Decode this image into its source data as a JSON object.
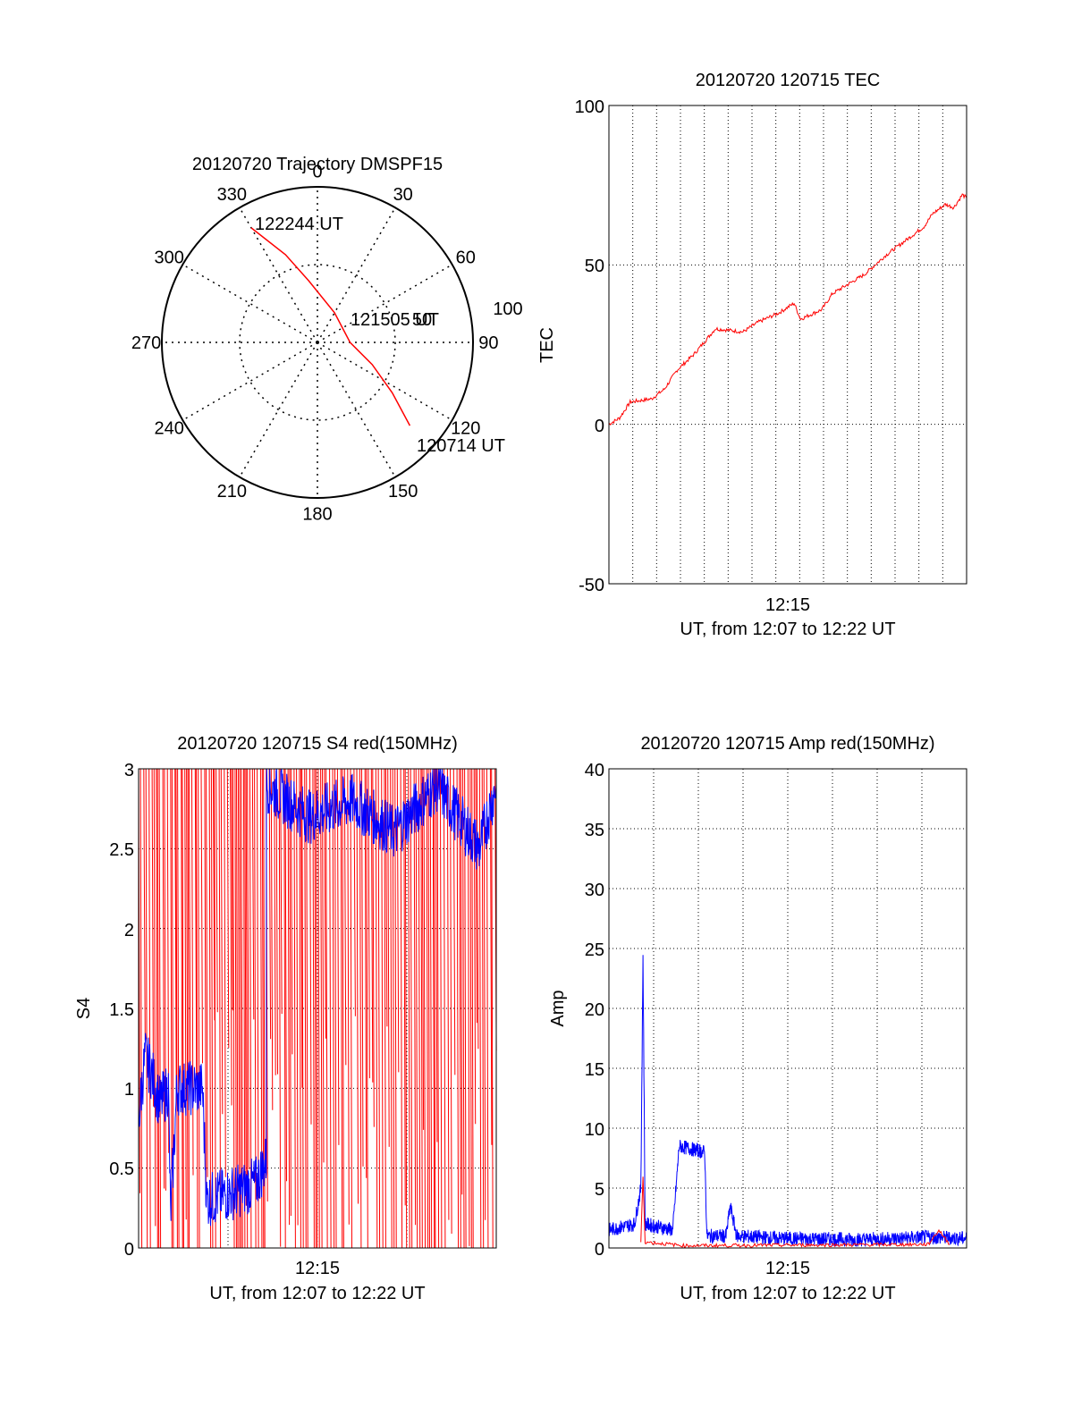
{
  "chart_data": [
    {
      "type": "polar-trajectory",
      "title": "20120720 Trajectory DMSPF15",
      "azimuth_labels": [
        "0",
        "30",
        "60",
        "90",
        "120",
        "150",
        "180",
        "210",
        "240",
        "270",
        "300",
        "330"
      ],
      "radial_labels": [
        "50",
        "100"
      ],
      "series": [
        {
          "color": "#ff0000",
          "points": [
            {
              "azimuth": 330,
              "zenith": 85
            },
            {
              "azimuth": 340,
              "zenith": 60
            },
            {
              "azimuth": 352,
              "zenith": 40
            },
            {
              "azimuth": 30,
              "zenith": 22
            },
            {
              "azimuth": 90,
              "zenith": 21
            },
            {
              "azimuth": 112,
              "zenith": 38
            },
            {
              "azimuth": 124,
              "zenith": 58
            },
            {
              "azimuth": 132,
              "zenith": 80
            }
          ]
        }
      ],
      "annotations": [
        {
          "text": "122244 UT",
          "azimuth": 336,
          "zenith": 80
        },
        {
          "text": "121505 UT",
          "azimuth": 75,
          "zenith": 55
        },
        {
          "text": "120714 UT",
          "azimuth": 130,
          "zenith": 100
        }
      ],
      "grid": true
    },
    {
      "type": "line",
      "title": "20120720 120715 TEC",
      "xlabel": "UT, from 12:07 to 12:22 UT",
      "ylabel": "TEC",
      "xticks": [
        "12:15"
      ],
      "ylim": [
        -50,
        100
      ],
      "yticks": [
        "-50",
        "0",
        "50",
        "100"
      ],
      "grid": true,
      "series": [
        {
          "color": "#ff0000",
          "points": [
            [
              0,
              0
            ],
            [
              0.5,
              2
            ],
            [
              1,
              7
            ],
            [
              2,
              8
            ],
            [
              2.6,
              11
            ],
            [
              3.2,
              17
            ],
            [
              4,
              22
            ],
            [
              5,
              30
            ],
            [
              6.3,
              29
            ],
            [
              7,
              32
            ],
            [
              8,
              35
            ],
            [
              8.7,
              38
            ],
            [
              9,
              33
            ],
            [
              10,
              36
            ],
            [
              10.5,
              41
            ],
            [
              11.5,
              45
            ],
            [
              12,
              47
            ],
            [
              13,
              53
            ],
            [
              14,
              58
            ],
            [
              14.8,
              62
            ],
            [
              15.2,
              66
            ],
            [
              15.8,
              69
            ],
            [
              16.2,
              68
            ],
            [
              16.6,
              72
            ],
            [
              16.8,
              71
            ]
          ]
        }
      ]
    },
    {
      "type": "line",
      "title": "20120720 120715 S4 red(150MHz)",
      "xlabel": "UT, from 12:07 to 12:22 UT",
      "ylabel": "S4",
      "xticks": [
        "12:15"
      ],
      "ylim": [
        0,
        3
      ],
      "yticks": [
        "0",
        "0.5",
        "1",
        "1.5",
        "2",
        "2.5",
        "3"
      ],
      "grid": true,
      "series": [
        {
          "color": "#ff0000",
          "style": "dense-saturated-noise"
        },
        {
          "color": "#0000ff",
          "points": [
            [
              0,
              0.8
            ],
            [
              0.3,
              1.2
            ],
            [
              0.6,
              1.1
            ],
            [
              1,
              0.9
            ],
            [
              1.4,
              1.0
            ],
            [
              1.5,
              0.2
            ],
            [
              1.8,
              1.0
            ],
            [
              2.4,
              1.0
            ],
            [
              3,
              1.0
            ],
            [
              3.2,
              0.3
            ],
            [
              4.5,
              0.35
            ],
            [
              5.5,
              0.4
            ],
            [
              6,
              0.55
            ],
            [
              6,
              2.9
            ],
            [
              8,
              2.7
            ],
            [
              10,
              2.8
            ],
            [
              12,
              2.6
            ],
            [
              14,
              2.9
            ],
            [
              16,
              2.5
            ],
            [
              16.8,
              2.9
            ]
          ]
        }
      ]
    },
    {
      "type": "line",
      "title": "20120720 120715 Amp red(150MHz)",
      "xlabel": "UT, from 12:07 to 12:22 UT",
      "ylabel": "Amp",
      "xticks": [
        "12:15"
      ],
      "ylim": [
        0,
        40
      ],
      "yticks": [
        "0",
        "5",
        "10",
        "15",
        "20",
        "25",
        "30",
        "35",
        "40"
      ],
      "grid": true,
      "series": [
        {
          "color": "#0000ff",
          "points": [
            [
              0,
              1.5
            ],
            [
              1.2,
              2
            ],
            [
              1.5,
              5
            ],
            [
              1.6,
              24.5
            ],
            [
              1.7,
              2
            ],
            [
              3,
              1.5
            ],
            [
              3.3,
              8.5
            ],
            [
              4.5,
              8
            ],
            [
              4.6,
              1
            ],
            [
              5.5,
              1
            ],
            [
              5.7,
              3.5
            ],
            [
              6,
              1
            ],
            [
              8,
              0.8
            ],
            [
              12,
              0.7
            ],
            [
              15,
              0.9
            ],
            [
              16.8,
              0.8
            ]
          ]
        },
        {
          "color": "#ff0000",
          "points": [
            [
              1.5,
              0.5
            ],
            [
              1.6,
              6
            ],
            [
              1.7,
              0.5
            ],
            [
              3.5,
              0.2
            ],
            [
              4.5,
              0.2
            ],
            [
              15,
              0.3
            ],
            [
              15.5,
              1.5
            ],
            [
              16,
              0.3
            ]
          ]
        }
      ]
    }
  ]
}
